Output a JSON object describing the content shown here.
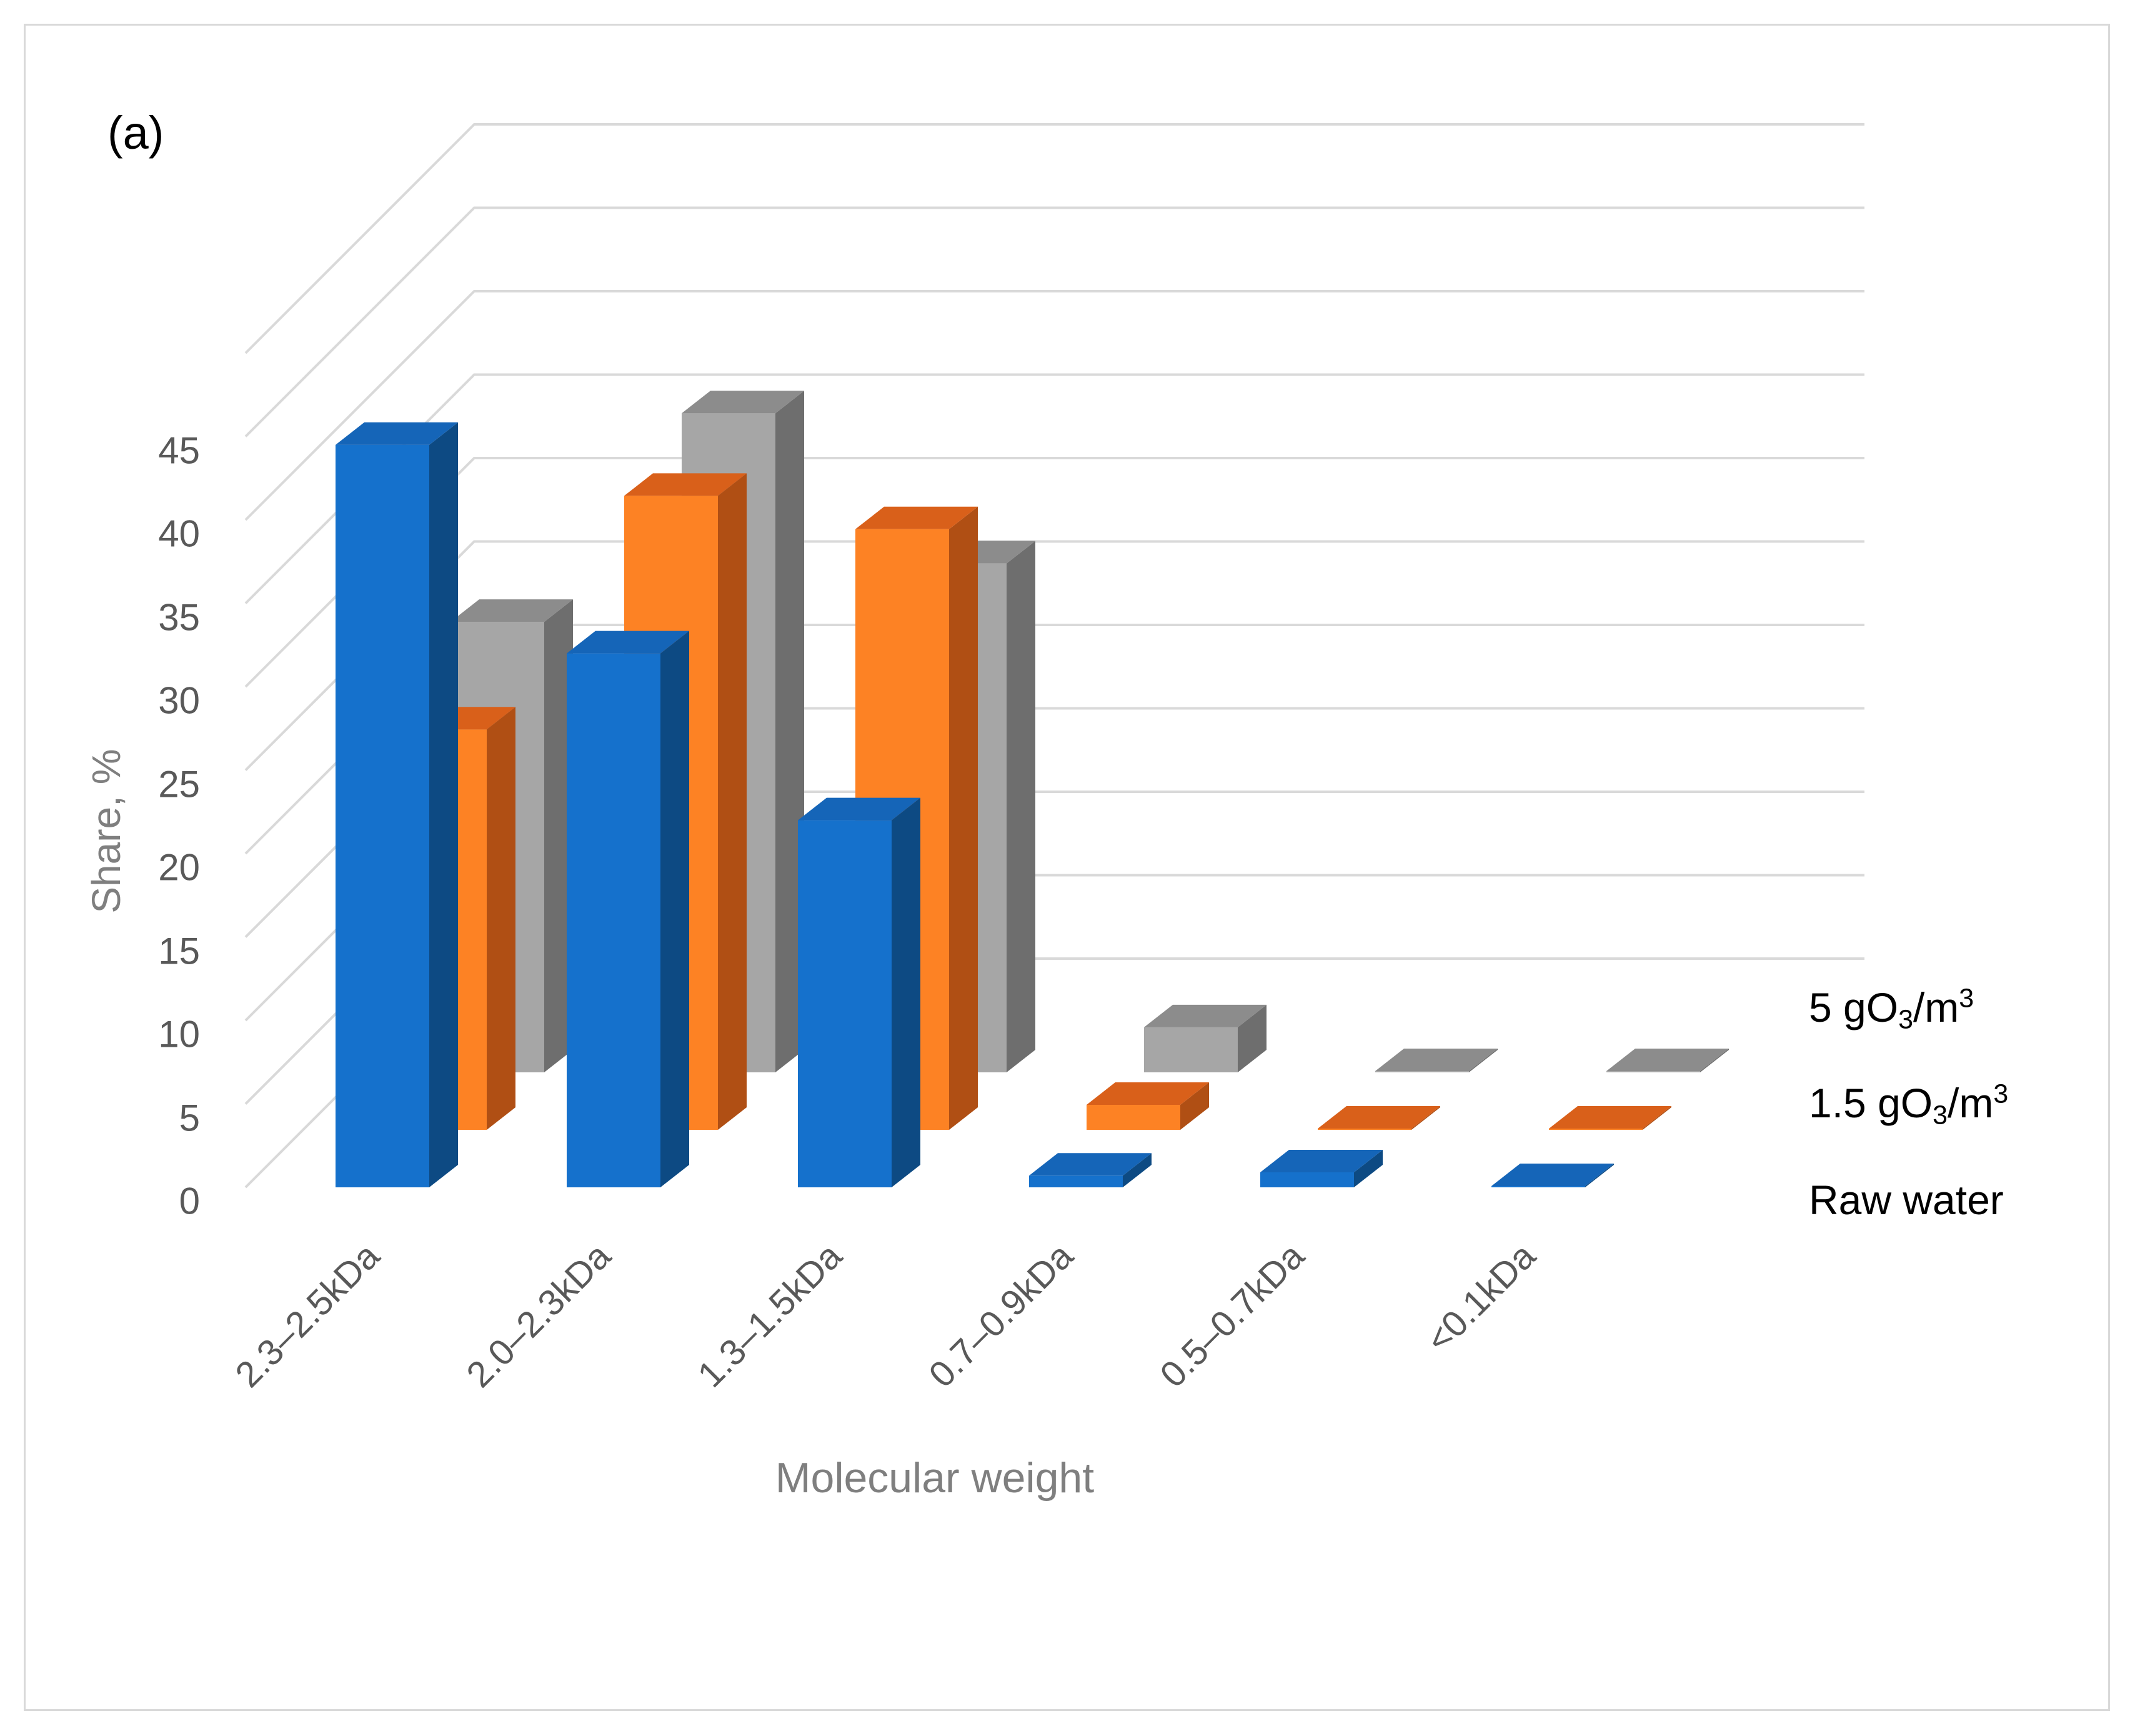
{
  "panel_label": "(a)",
  "chart_data": {
    "type": "bar",
    "subtype": "3d-clustered-depth",
    "ylabel": "Share, %",
    "xlabel": "Molecular weight",
    "ylim": [
      0,
      45
    ],
    "yticks": [
      0,
      5,
      10,
      15,
      20,
      25,
      30,
      35,
      40,
      45
    ],
    "grid": true,
    "categories": [
      "2.3–2.5kDa",
      "2.0–2.3kDa",
      "1.3–1.5kDa",
      "0.7–0.9kDa",
      "0.5–0.7kDa",
      "<0.1kDa"
    ],
    "series": [
      {
        "name": "Raw water",
        "name_parts": {
          "main": "Raw water",
          "sub": "",
          "after": "",
          "sup": ""
        },
        "values": [
          44.5,
          32,
          22,
          0.7,
          0.9,
          0.05
        ],
        "colors": {
          "front": "#1571cc",
          "side": "#0d4a83",
          "top": "#1565b8"
        }
      },
      {
        "name": "1.5 gO3/m3",
        "name_parts": {
          "main": "1.5 gO",
          "sub": "3",
          "after": "/m",
          "sup": "3"
        },
        "values": [
          24,
          38,
          36,
          1.5,
          0.05,
          0.05
        ],
        "colors": {
          "front": "#fd8224",
          "side": "#b04f14",
          "top": "#d9601a"
        }
      },
      {
        "name": "5 gO3/m3",
        "name_parts": {
          "main": "5 gO",
          "sub": "3",
          "after": "/m",
          "sup": "3"
        },
        "values": [
          27,
          39.5,
          30.5,
          2.7,
          0.05,
          0.05
        ],
        "colors": {
          "front": "#a6a6a6",
          "side": "#6e6e6e",
          "top": "#8c8c8c"
        }
      }
    ]
  }
}
